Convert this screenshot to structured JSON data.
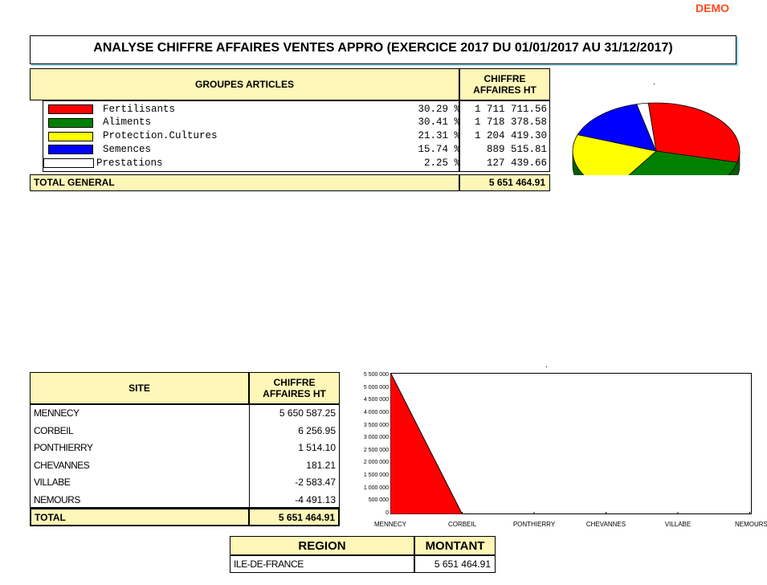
{
  "watermark": "DEMO",
  "title": "ANALYSE CHIFFRE AFFAIRES VENTES APPRO (EXERCICE 2017 DU 01/01/2017 AU 31/12/2017)",
  "groups": {
    "header_name": "GROUPES ARTICLES",
    "header_value_line1": "CHIFFRE",
    "header_value_line2": "AFFAIRES HT",
    "rows": [
      {
        "name": "Fertilisants",
        "pct": "30.29 %",
        "amount": "1 711 711.56",
        "color": "#ff0000"
      },
      {
        "name": "Aliments",
        "pct": "30.41 %",
        "amount": "1 718 378.58",
        "color": "#008000"
      },
      {
        "name": "Protection.Cultures",
        "pct": "21.31 %",
        "amount": "1 204 419.30",
        "color": "#ffff00"
      },
      {
        "name": "Semences",
        "pct": "15.74 %",
        "amount": "889 515.81",
        "color": "#0000ff"
      },
      {
        "name": "Prestations",
        "pct": "2.25 %",
        "amount": "127 439.66",
        "color": "#ffffff"
      }
    ],
    "total_label": "TOTAL GENERAL",
    "total_value": "5 651 464.91"
  },
  "sites": {
    "header_name": "SITE",
    "header_value_line1": "CHIFFRE",
    "header_value_line2": "AFFAIRES HT",
    "rows": [
      {
        "name": "MENNECY",
        "value": "5 650 587.25"
      },
      {
        "name": "CORBEIL",
        "value": "6 256.95"
      },
      {
        "name": "PONTHIERRY",
        "value": "1 514.10"
      },
      {
        "name": "CHEVANNES",
        "value": "181.21"
      },
      {
        "name": "VILLABE",
        "value": "-2 583.47"
      },
      {
        "name": "NEMOURS",
        "value": "-4 491.13"
      }
    ],
    "total_label": "TOTAL",
    "total_value": "5 651 464.91"
  },
  "region": {
    "header_name": "REGION",
    "header_value": "MONTANT",
    "name": "ILE-DE-FRANCE",
    "value": "5 651 464.91"
  },
  "chart_data": [
    {
      "type": "pie",
      "categories": [
        "Fertilisants",
        "Aliments",
        "Protection.Cultures",
        "Semences",
        "Prestations"
      ],
      "values": [
        30.29,
        30.41,
        21.31,
        15.74,
        2.25
      ],
      "colors": [
        "#ff0000",
        "#008000",
        "#ffff00",
        "#0000ff",
        "#ffffff"
      ],
      "three_d": true,
      "visible": "top portion only"
    },
    {
      "type": "area",
      "categories": [
        "MENNECY",
        "CORBEIL",
        "PONTHIERRY",
        "CHEVANNES",
        "VILLABE",
        "NEMOURS"
      ],
      "values": [
        5650587.25,
        6256.95,
        1514.1,
        181.21,
        -2583.47,
        -4491.13
      ],
      "color": "#ff0000",
      "ylim": [
        0,
        5500000
      ],
      "yticks": [
        "0",
        "500 000",
        "1 000 000",
        "1 500 000",
        "2 000 000",
        "2 500 000",
        "3 000 000",
        "3 500 000",
        "4 000 000",
        "4 500 000",
        "5 000 000",
        "5 500 000"
      ],
      "grid": false
    }
  ]
}
